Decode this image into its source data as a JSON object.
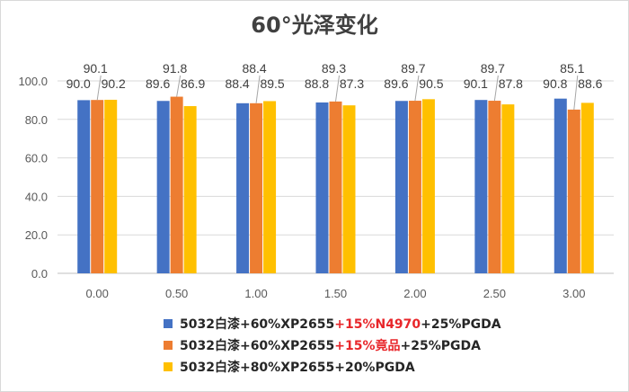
{
  "chart_data": {
    "type": "bar",
    "title": "60°光泽变化",
    "categories": [
      "0.00",
      "0.50",
      "1.00",
      "1.50",
      "2.00",
      "2.50",
      "3.00"
    ],
    "ylim": [
      0,
      100
    ],
    "yticks": [
      "0.0",
      "20.0",
      "40.0",
      "60.0",
      "80.0",
      "100.0"
    ],
    "grid": true,
    "legend_position": "bottom",
    "series": [
      {
        "name_parts": [
          {
            "text": "5032白漆+60%XP2655",
            "color": "#262626"
          },
          {
            "text": "+15%N4970",
            "color": "#e8262a"
          },
          {
            "text": "+25%PGDA",
            "color": "#262626"
          }
        ],
        "color": "#4472c4",
        "values": [
          90.0,
          89.6,
          88.4,
          88.8,
          89.6,
          90.1,
          90.8
        ],
        "labels": [
          "90.0",
          "89.6",
          "88.4",
          "88.8",
          "89.6",
          "90.1",
          "90.8"
        ]
      },
      {
        "name_parts": [
          {
            "text": "5032白漆+60%XP2655",
            "color": "#262626"
          },
          {
            "text": "+15%竟品",
            "color": "#e8262a"
          },
          {
            "text": "+25%PGDA",
            "color": "#262626"
          }
        ],
        "color": "#ed7d31",
        "values": [
          90.1,
          91.8,
          88.4,
          89.3,
          89.7,
          89.7,
          85.1
        ],
        "labels": [
          "90.1",
          "91.8",
          "88.4",
          "89.3",
          "89.7",
          "89.7",
          "85.1"
        ]
      },
      {
        "name_parts": [
          {
            "text": "5032白漆+80%XP2655+20%PGDA",
            "color": "#262626"
          }
        ],
        "color": "#ffc000",
        "values": [
          90.2,
          86.9,
          89.5,
          87.3,
          90.5,
          87.8,
          88.6
        ],
        "labels": [
          "90.2",
          "86.9",
          "89.5",
          "87.3",
          "90.5",
          "87.8",
          "88.6"
        ]
      }
    ]
  }
}
